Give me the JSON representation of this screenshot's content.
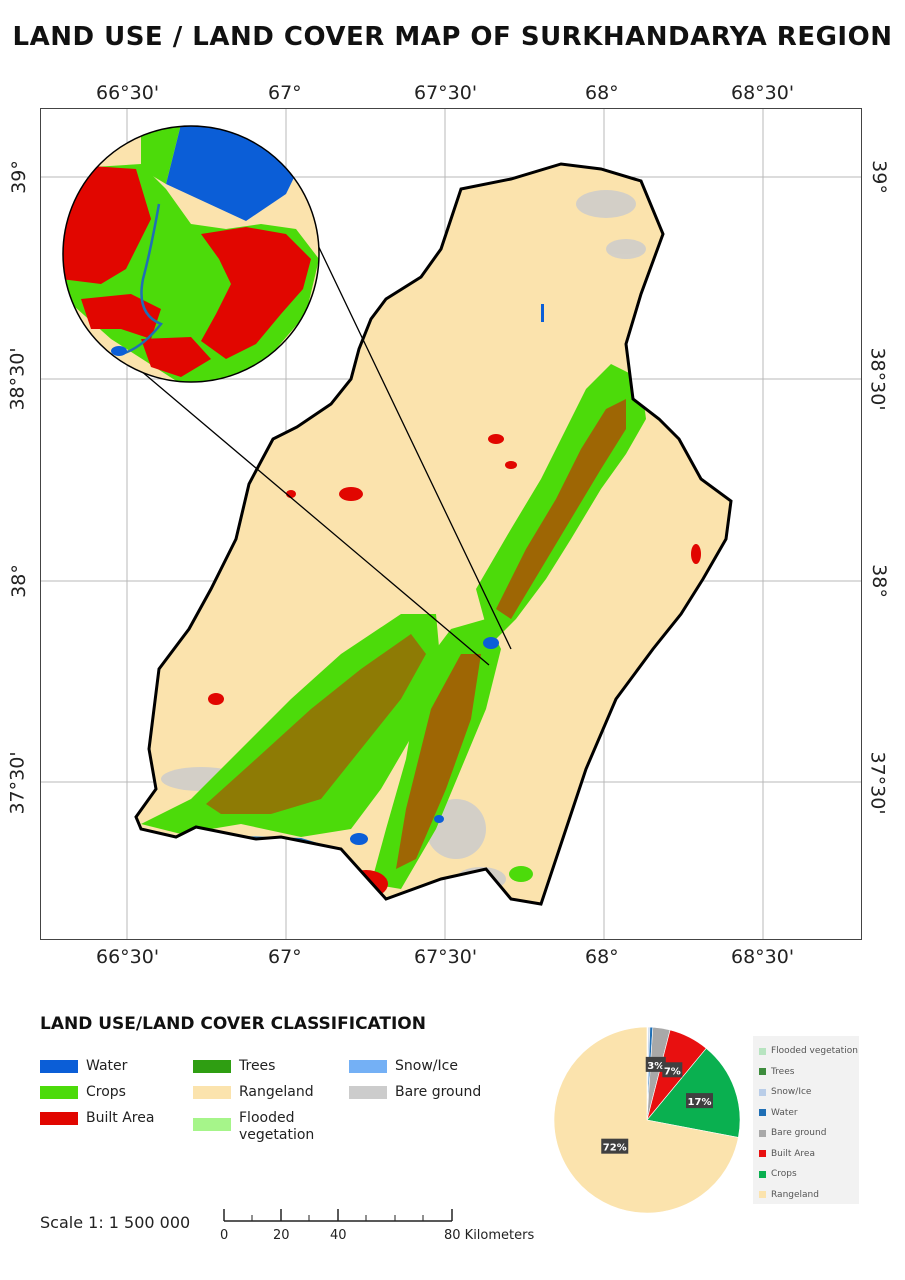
{
  "title": "LAND USE / LAND COVER MAP OF SURKHANDARYA REGION",
  "map": {
    "lon_ticks": [
      "66°30'",
      "67°",
      "67°30'",
      "68°",
      "68°30'"
    ],
    "lat_ticks": [
      "39°",
      "38°30'",
      "38°",
      "37°30'"
    ]
  },
  "legend": {
    "title": "LAND USE/LAND COVER CLASSIFICATION",
    "items": [
      {
        "label": "Water",
        "color": "#0b5ed7"
      },
      {
        "label": "Crops",
        "color": "#4cdb0a"
      },
      {
        "label": "Built Area",
        "color": "#e10600"
      },
      {
        "label": "Trees",
        "color": "#2f9e12"
      },
      {
        "label": "Rangeland",
        "color": "#fbe3ad"
      },
      {
        "label": "Flooded vegetation",
        "label_line1": "Flooded",
        "label_line2": "vegetation",
        "color": "#a6f58a"
      },
      {
        "label": "Snow/Ice",
        "color": "#74b0f5"
      },
      {
        "label": "Bare ground",
        "color": "#cccccc"
      }
    ]
  },
  "chart_data": {
    "type": "pie",
    "slices": [
      {
        "label": "Rangeland",
        "value": 72,
        "color": "#fbe3ad",
        "data_label": "72%"
      },
      {
        "label": "Crops",
        "value": 17,
        "color": "#0ab050",
        "data_label": "17%"
      },
      {
        "label": "Built Area",
        "value": 7,
        "color": "#e81010",
        "data_label": "7%"
      },
      {
        "label": "Bare ground",
        "value": 3,
        "color": "#a8a8a8",
        "data_label": "3%"
      },
      {
        "label": "Water",
        "value": 0.5,
        "color": "#1f6fb5",
        "data_label": ""
      },
      {
        "label": "Snow/Ice",
        "value": 0.3,
        "color": "#b9cde8",
        "data_label": ""
      },
      {
        "label": "Trees",
        "value": 0.1,
        "color": "#3d8c3d",
        "data_label": ""
      },
      {
        "label": "Flooded vegetation",
        "value": 0.1,
        "color": "#b7e4c0",
        "data_label": ""
      }
    ],
    "legend_order": [
      "Flooded vegetation",
      "Trees",
      "Snow/Ice",
      "Water",
      "Bare ground",
      "Built Area",
      "Crops",
      "Rangeland"
    ],
    "legend_placement": "right"
  },
  "scale": {
    "text": "Scale 1: 1 500 000",
    "labels": [
      "0",
      "20",
      "40",
      "80 Kilometers"
    ]
  }
}
